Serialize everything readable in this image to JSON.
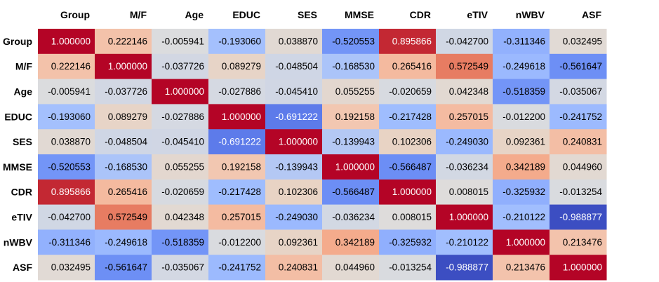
{
  "chart_data": {
    "type": "heatmap",
    "title": "",
    "colormap": "coolwarm",
    "vmin": -1.0,
    "vmax": 1.0,
    "columns": [
      "Group",
      "M/F",
      "Age",
      "EDUC",
      "SES",
      "MMSE",
      "CDR",
      "eTIV",
      "nWBV",
      "ASF"
    ],
    "rows": [
      "Group",
      "M/F",
      "Age",
      "EDUC",
      "SES",
      "MMSE",
      "CDR",
      "eTIV",
      "nWBV",
      "ASF"
    ],
    "values": [
      [
        "1.000000",
        "0.222146",
        "-0.005941",
        "-0.193060",
        "0.038870",
        "-0.520553",
        "0.895866",
        "-0.042700",
        "-0.311346",
        "0.032495"
      ],
      [
        "0.222146",
        "1.000000",
        "-0.037726",
        "0.089279",
        "-0.048504",
        "-0.168530",
        "0.265416",
        "0.572549",
        "-0.249618",
        "-0.561647"
      ],
      [
        "-0.005941",
        "-0.037726",
        "1.000000",
        "-0.027886",
        "-0.045410",
        "0.055255",
        "-0.020659",
        "0.042348",
        "-0.518359",
        "-0.035067"
      ],
      [
        "-0.193060",
        "0.089279",
        "-0.027886",
        "1.000000",
        "-0.691222",
        "0.192158",
        "-0.217428",
        "0.257015",
        "-0.012200",
        "-0.241752"
      ],
      [
        "0.038870",
        "-0.048504",
        "-0.045410",
        "-0.691222",
        "1.000000",
        "-0.139943",
        "0.102306",
        "-0.249030",
        "0.092361",
        "0.240831"
      ],
      [
        "-0.520553",
        "-0.168530",
        "0.055255",
        "0.192158",
        "-0.139943",
        "1.000000",
        "-0.566487",
        "-0.036234",
        "0.342189",
        "0.044960"
      ],
      [
        "0.895866",
        "0.265416",
        "-0.020659",
        "-0.217428",
        "0.102306",
        "-0.566487",
        "1.000000",
        "0.008015",
        "-0.325932",
        "-0.013254"
      ],
      [
        "-0.042700",
        "0.572549",
        "0.042348",
        "0.257015",
        "-0.249030",
        "-0.036234",
        "0.008015",
        "1.000000",
        "-0.210122",
        "-0.988877"
      ],
      [
        "-0.311346",
        "-0.249618",
        "-0.518359",
        "-0.012200",
        "0.092361",
        "0.342189",
        "-0.325932",
        "-0.210122",
        "1.000000",
        "0.213476"
      ],
      [
        "0.032495",
        "-0.561647",
        "-0.035067",
        "-0.241752",
        "0.240831",
        "0.044960",
        "-0.013254",
        "-0.988877",
        "0.213476",
        "1.000000"
      ]
    ]
  }
}
